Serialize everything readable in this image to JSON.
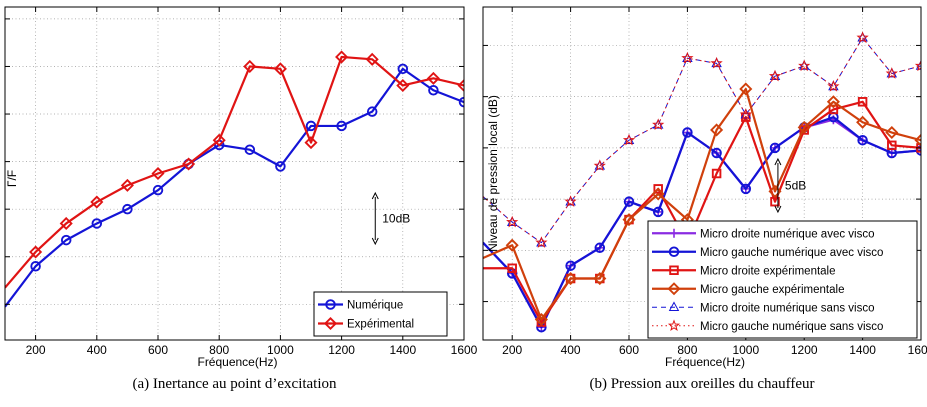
{
  "chart_data": [
    {
      "type": "line",
      "caption": "(a) Inertance au point d’excitation",
      "xlabel": "Fréquence(Hz)",
      "ylabel": "Γ/F",
      "xlim": [
        100,
        1600
      ],
      "ylim": [
        -5.5,
        8.5
      ],
      "xticks": [
        200,
        400,
        600,
        800,
        1000,
        1200,
        1400,
        1600
      ],
      "yticks": [
        -4,
        -2,
        0,
        2,
        4,
        6,
        8
      ],
      "show_ytick_labels": false,
      "grid": true,
      "legend_position": "bottom-right",
      "annotation": {
        "text": "10dB",
        "x": 1310,
        "y_from": -2.0,
        "y_to": 0.2
      },
      "series": [
        {
          "name": "Numérique",
          "color": "#1414d6",
          "marker": "circle",
          "x": [
            100,
            200,
            300,
            400,
            500,
            600,
            700,
            800,
            900,
            1000,
            1100,
            1200,
            1300,
            1400,
            1500,
            1600
          ],
          "y": [
            -4.1,
            -2.4,
            -1.3,
            -0.6,
            0.0,
            0.8,
            1.9,
            2.7,
            2.5,
            1.8,
            3.5,
            3.5,
            4.1,
            5.9,
            5.0,
            4.5
          ]
        },
        {
          "name": "Expérimental",
          "color": "#e01414",
          "marker": "diamond",
          "x": [
            100,
            200,
            300,
            400,
            500,
            600,
            700,
            800,
            900,
            1000,
            1100,
            1200,
            1300,
            1400,
            1500,
            1600
          ],
          "y": [
            -3.3,
            -1.8,
            -0.6,
            0.3,
            1.0,
            1.5,
            1.9,
            2.9,
            6.0,
            5.9,
            2.8,
            6.4,
            6.3,
            5.2,
            5.5,
            5.2
          ]
        }
      ]
    },
    {
      "type": "line",
      "caption": "(b) Pression aux oreilles du chauffeur",
      "xlabel": "Fréquence(Hz)",
      "ylabel": "Niveau de pression local (dB)",
      "xlim": [
        100,
        1600
      ],
      "ylim": [
        -3.5,
        9.5
      ],
      "xticks": [
        200,
        400,
        600,
        800,
        1000,
        1200,
        1400,
        1600
      ],
      "yticks": [
        -2,
        0,
        2,
        4,
        6,
        8
      ],
      "show_ytick_labels": false,
      "grid": true,
      "legend_position": "bottom-right",
      "annotation": {
        "text": "5dB",
        "x": 1110,
        "y_from": 3.5,
        "y_to": 1.5
      },
      "series": [
        {
          "name": "Micro droite numérique avec visco",
          "color": "#8a2be2",
          "marker": "plus",
          "style": "solid",
          "x": [
            100,
            200,
            300,
            400,
            500,
            600,
            700,
            800,
            900,
            1000,
            1100,
            1200,
            1300,
            1400,
            1500,
            1600
          ],
          "y": [
            0.3,
            -0.9,
            -3.0,
            -0.6,
            0.1,
            1.9,
            1.5,
            4.6,
            3.8,
            2.4,
            4.0,
            4.8,
            5.1,
            4.3,
            3.8,
            3.9
          ]
        },
        {
          "name": "Micro gauche numérique avec visco",
          "color": "#1414d6",
          "marker": "circle",
          "style": "solid",
          "x": [
            100,
            200,
            300,
            400,
            500,
            600,
            700,
            800,
            900,
            1000,
            1100,
            1200,
            1300,
            1400,
            1500,
            1600
          ],
          "y": [
            0.3,
            -0.9,
            -3.0,
            -0.6,
            0.1,
            1.9,
            1.5,
            4.6,
            3.8,
            2.4,
            4.0,
            4.8,
            5.2,
            4.3,
            3.8,
            3.9
          ]
        },
        {
          "name": "Micro droite expérimentale",
          "color": "#e01414",
          "marker": "square",
          "style": "solid",
          "x": [
            100,
            200,
            300,
            400,
            500,
            600,
            700,
            800,
            900,
            1000,
            1100,
            1200,
            1300,
            1400,
            1500,
            1600
          ],
          "y": [
            -0.7,
            -0.7,
            -2.8,
            -1.1,
            -1.1,
            1.2,
            2.4,
            0.3,
            3.0,
            5.2,
            1.9,
            4.7,
            5.5,
            5.8,
            4.1,
            4.0
          ]
        },
        {
          "name": "Micro gauche expérimentale",
          "color": "#d0400c",
          "marker": "diamond",
          "style": "solid",
          "x": [
            100,
            200,
            300,
            400,
            500,
            600,
            700,
            800,
            900,
            1000,
            1100,
            1200,
            1300,
            1400,
            1500,
            1600
          ],
          "y": [
            -0.3,
            0.2,
            -2.7,
            -1.1,
            -1.1,
            1.2,
            2.2,
            1.2,
            4.7,
            6.3,
            2.3,
            4.8,
            5.8,
            5.0,
            4.6,
            4.3
          ]
        },
        {
          "name": "Micro droite numérique sans visco",
          "color": "#1414d6",
          "marker": "triangle",
          "style": "dashed",
          "x": [
            100,
            200,
            300,
            400,
            500,
            600,
            700,
            800,
            900,
            1000,
            1100,
            1200,
            1300,
            1400,
            1500,
            1600
          ],
          "y": [
            2.1,
            1.1,
            0.3,
            1.9,
            3.3,
            4.3,
            4.9,
            7.5,
            7.3,
            5.3,
            6.8,
            7.2,
            6.4,
            8.3,
            6.9,
            7.2
          ]
        },
        {
          "name": "Micro gauche numérique sans visco",
          "color": "#e01414",
          "marker": "star",
          "style": "dotted",
          "x": [
            100,
            200,
            300,
            400,
            500,
            600,
            700,
            800,
            900,
            1000,
            1100,
            1200,
            1300,
            1400,
            1500,
            1600
          ],
          "y": [
            2.1,
            1.1,
            0.3,
            1.9,
            3.3,
            4.3,
            4.9,
            7.5,
            7.3,
            5.3,
            6.8,
            7.2,
            6.4,
            8.3,
            6.9,
            7.2
          ]
        }
      ]
    }
  ]
}
